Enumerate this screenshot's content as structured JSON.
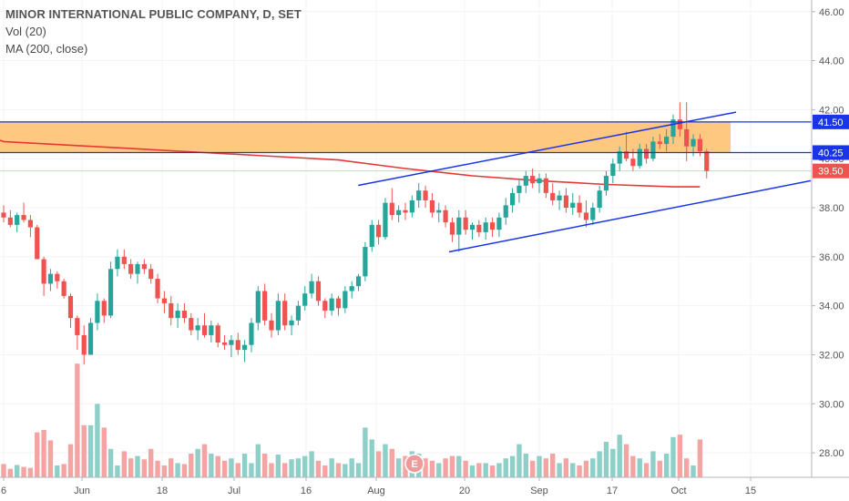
{
  "legend": {
    "title": "MINOR INTERNATIONAL PUBLIC COMPANY, D, SET",
    "vol": "Vol (20)",
    "ma": "MA (200, close)"
  },
  "colors": {
    "up": "#26a69a",
    "down": "#ef5350",
    "vol_up": "#8ecfc8",
    "vol_down": "#f4a4a2",
    "ma": "#e53935",
    "channel": "#1a35e8",
    "zone": "#ffbe6b",
    "hline": "#1a35e8",
    "price_tag": "#ef5350",
    "earnings": "#ef9a9a"
  },
  "chart_data": {
    "type": "candlestick",
    "ylim": [
      27,
      46.4
    ],
    "y_ticks": [
      "28.00",
      "30.00",
      "32.00",
      "34.00",
      "36.00",
      "38.00",
      "40.00",
      "42.00",
      "44.00",
      "46.00"
    ],
    "x_ticks": [
      "6",
      "Jun",
      "18",
      "Jul",
      "16",
      "Aug",
      "20",
      "Sep",
      "17",
      "Oct",
      "15"
    ],
    "price_tags": [
      "41.50",
      "40.25",
      "39.50"
    ],
    "earnings_marker": "E",
    "zone": [
      40.25,
      41.5
    ],
    "current_price": 39.5,
    "ohlc": [
      [
        37.8,
        38.1,
        37.4,
        37.6
      ],
      [
        37.6,
        37.9,
        37.2,
        37.3
      ],
      [
        37.3,
        37.8,
        37.0,
        37.7
      ],
      [
        37.7,
        38.2,
        37.4,
        37.5
      ],
      [
        37.5,
        37.7,
        36.8,
        37.2
      ],
      [
        37.2,
        37.3,
        35.9,
        35.9
      ],
      [
        35.9,
        36.0,
        34.4,
        34.9
      ],
      [
        34.9,
        35.5,
        34.6,
        35.3
      ],
      [
        35.3,
        35.4,
        34.7,
        35.0
      ],
      [
        35.0,
        35.1,
        34.3,
        34.4
      ],
      [
        34.4,
        34.5,
        33.1,
        33.5
      ],
      [
        33.5,
        33.6,
        32.2,
        32.8
      ],
      [
        32.8,
        33.2,
        31.6,
        32.0
      ],
      [
        32.0,
        33.5,
        32.0,
        33.3
      ],
      [
        33.3,
        34.5,
        33.0,
        34.2
      ],
      [
        34.2,
        34.3,
        33.3,
        33.6
      ],
      [
        33.6,
        35.8,
        33.5,
        35.5
      ],
      [
        35.5,
        36.3,
        35.2,
        36.0
      ],
      [
        36.0,
        36.3,
        35.5,
        35.7
      ],
      [
        35.7,
        35.9,
        35.1,
        35.3
      ],
      [
        35.3,
        35.8,
        34.9,
        35.7
      ],
      [
        35.7,
        35.9,
        35.3,
        35.5
      ],
      [
        35.5,
        35.7,
        34.9,
        35.1
      ],
      [
        35.1,
        35.3,
        34.1,
        34.3
      ],
      [
        34.3,
        34.6,
        33.7,
        34.1
      ],
      [
        34.1,
        34.4,
        33.2,
        33.5
      ],
      [
        33.5,
        34.1,
        33.1,
        33.8
      ],
      [
        33.8,
        34.1,
        33.3,
        33.5
      ],
      [
        33.5,
        33.7,
        32.8,
        33.0
      ],
      [
        33.0,
        33.5,
        32.6,
        33.2
      ],
      [
        33.2,
        33.7,
        32.7,
        32.8
      ],
      [
        32.8,
        33.4,
        32.5,
        33.2
      ],
      [
        33.2,
        33.3,
        32.3,
        32.5
      ],
      [
        32.5,
        32.8,
        32.2,
        32.4
      ],
      [
        32.4,
        32.8,
        31.9,
        32.6
      ],
      [
        32.6,
        32.9,
        32.0,
        32.2
      ],
      [
        32.2,
        32.6,
        31.7,
        32.4
      ],
      [
        32.4,
        33.5,
        32.1,
        33.3
      ],
      [
        33.3,
        34.8,
        33.0,
        34.6
      ],
      [
        34.6,
        34.9,
        33.2,
        33.4
      ],
      [
        33.4,
        33.7,
        32.7,
        33.0
      ],
      [
        33.0,
        34.5,
        32.8,
        34.2
      ],
      [
        34.2,
        34.5,
        33.0,
        33.2
      ],
      [
        33.2,
        33.6,
        32.8,
        33.4
      ],
      [
        33.4,
        34.2,
        33.2,
        34.0
      ],
      [
        34.0,
        34.8,
        33.8,
        34.5
      ],
      [
        34.5,
        35.3,
        34.3,
        35.0
      ],
      [
        35.0,
        35.2,
        34.0,
        34.2
      ],
      [
        34.2,
        34.3,
        33.5,
        33.8
      ],
      [
        33.8,
        34.5,
        33.6,
        34.3
      ],
      [
        34.3,
        34.4,
        33.6,
        33.9
      ],
      [
        33.9,
        34.8,
        33.7,
        34.6
      ],
      [
        34.6,
        35.0,
        34.3,
        34.8
      ],
      [
        34.8,
        35.3,
        34.6,
        35.2
      ],
      [
        35.2,
        36.6,
        35.0,
        36.4
      ],
      [
        36.4,
        37.5,
        36.2,
        37.3
      ],
      [
        37.3,
        37.5,
        36.5,
        36.8
      ],
      [
        36.8,
        38.4,
        36.7,
        38.2
      ],
      [
        38.2,
        38.8,
        37.5,
        37.7
      ],
      [
        37.7,
        38.1,
        37.4,
        37.9
      ],
      [
        37.9,
        38.2,
        37.5,
        37.8
      ],
      [
        37.8,
        38.5,
        37.6,
        38.3
      ],
      [
        38.3,
        39.0,
        38.0,
        38.7
      ],
      [
        38.7,
        38.9,
        38.0,
        38.3
      ],
      [
        38.3,
        38.6,
        37.6,
        37.8
      ],
      [
        37.8,
        38.2,
        37.4,
        37.9
      ],
      [
        37.9,
        38.1,
        37.2,
        37.4
      ],
      [
        37.4,
        37.6,
        36.6,
        36.9
      ],
      [
        36.9,
        37.9,
        36.2,
        37.6
      ],
      [
        37.6,
        37.9,
        36.9,
        37.1
      ],
      [
        37.1,
        37.4,
        36.7,
        37.3
      ],
      [
        37.3,
        37.5,
        36.8,
        37.0
      ],
      [
        37.0,
        37.6,
        36.7,
        37.4
      ],
      [
        37.4,
        37.6,
        36.8,
        37.1
      ],
      [
        37.1,
        37.8,
        36.8,
        37.6
      ],
      [
        37.6,
        38.4,
        37.3,
        38.1
      ],
      [
        38.1,
        38.8,
        37.8,
        38.6
      ],
      [
        38.6,
        39.2,
        38.2,
        38.9
      ],
      [
        38.9,
        39.5,
        38.6,
        39.3
      ],
      [
        39.3,
        39.6,
        38.8,
        39.0
      ],
      [
        39.0,
        39.4,
        38.6,
        39.2
      ],
      [
        39.2,
        39.4,
        38.4,
        38.6
      ],
      [
        38.6,
        39.0,
        38.1,
        38.3
      ],
      [
        38.3,
        38.7,
        37.9,
        38.5
      ],
      [
        38.5,
        38.8,
        37.8,
        38.0
      ],
      [
        38.0,
        38.6,
        37.7,
        38.2
      ],
      [
        38.2,
        38.5,
        37.6,
        37.8
      ],
      [
        37.8,
        38.3,
        37.2,
        37.5
      ],
      [
        37.5,
        38.2,
        37.3,
        38.0
      ],
      [
        38.0,
        38.9,
        37.8,
        38.7
      ],
      [
        38.7,
        39.5,
        38.5,
        39.3
      ],
      [
        39.3,
        40.0,
        39.0,
        39.8
      ],
      [
        39.8,
        40.5,
        39.5,
        40.3
      ],
      [
        40.3,
        41.1,
        39.9,
        40.0
      ],
      [
        40.0,
        40.4,
        39.5,
        39.7
      ],
      [
        39.7,
        40.6,
        39.6,
        40.4
      ],
      [
        40.4,
        40.6,
        39.8,
        40.0
      ],
      [
        40.0,
        40.9,
        39.9,
        40.7
      ],
      [
        40.7,
        41.0,
        40.4,
        40.6
      ],
      [
        40.6,
        41.2,
        40.3,
        40.9
      ],
      [
        40.9,
        41.8,
        40.6,
        41.6
      ],
      [
        41.6,
        42.3,
        40.9,
        41.2
      ],
      [
        41.2,
        42.3,
        39.9,
        40.5
      ],
      [
        40.5,
        41.0,
        40.1,
        40.8
      ],
      [
        40.8,
        41.0,
        40.1,
        40.3
      ],
      [
        40.3,
        40.4,
        39.2,
        39.5
      ]
    ],
    "volume": [
      [
        0.28,
        "down"
      ],
      [
        0.18,
        "down"
      ],
      [
        0.26,
        "up"
      ],
      [
        0.22,
        "down"
      ],
      [
        0.2,
        "down"
      ],
      [
        0.95,
        "down"
      ],
      [
        1.0,
        "down"
      ],
      [
        0.78,
        "down"
      ],
      [
        0.25,
        "up"
      ],
      [
        0.28,
        "down"
      ],
      [
        0.7,
        "down"
      ],
      [
        2.4,
        "down"
      ],
      [
        1.1,
        "down"
      ],
      [
        1.1,
        "up"
      ],
      [
        1.55,
        "up"
      ],
      [
        1.05,
        "down"
      ],
      [
        0.6,
        "up"
      ],
      [
        0.25,
        "up"
      ],
      [
        0.55,
        "down"
      ],
      [
        0.4,
        "down"
      ],
      [
        0.45,
        "up"
      ],
      [
        0.38,
        "down"
      ],
      [
        0.6,
        "down"
      ],
      [
        0.35,
        "down"
      ],
      [
        0.25,
        "down"
      ],
      [
        0.4,
        "down"
      ],
      [
        0.3,
        "up"
      ],
      [
        0.28,
        "down"
      ],
      [
        0.5,
        "down"
      ],
      [
        0.6,
        "up"
      ],
      [
        0.7,
        "down"
      ],
      [
        0.5,
        "up"
      ],
      [
        0.45,
        "down"
      ],
      [
        0.35,
        "down"
      ],
      [
        0.4,
        "up"
      ],
      [
        0.3,
        "down"
      ],
      [
        0.5,
        "up"
      ],
      [
        0.3,
        "up"
      ],
      [
        0.7,
        "up"
      ],
      [
        0.5,
        "down"
      ],
      [
        0.3,
        "down"
      ],
      [
        0.48,
        "up"
      ],
      [
        0.3,
        "down"
      ],
      [
        0.38,
        "up"
      ],
      [
        0.4,
        "up"
      ],
      [
        0.45,
        "up"
      ],
      [
        0.55,
        "up"
      ],
      [
        0.35,
        "down"
      ],
      [
        0.25,
        "down"
      ],
      [
        0.4,
        "up"
      ],
      [
        0.3,
        "down"
      ],
      [
        0.28,
        "up"
      ],
      [
        0.4,
        "up"
      ],
      [
        0.3,
        "up"
      ],
      [
        1.05,
        "up"
      ],
      [
        0.8,
        "up"
      ],
      [
        0.55,
        "down"
      ],
      [
        0.7,
        "up"
      ],
      [
        0.6,
        "down"
      ],
      [
        0.4,
        "up"
      ],
      [
        0.45,
        "down"
      ],
      [
        0.55,
        "up"
      ],
      [
        0.5,
        "up"
      ],
      [
        0.4,
        "down"
      ],
      [
        0.35,
        "down"
      ],
      [
        0.3,
        "up"
      ],
      [
        0.4,
        "down"
      ],
      [
        0.45,
        "down"
      ],
      [
        0.45,
        "up"
      ],
      [
        0.35,
        "down"
      ],
      [
        0.25,
        "up"
      ],
      [
        0.3,
        "down"
      ],
      [
        0.3,
        "up"
      ],
      [
        0.25,
        "down"
      ],
      [
        0.3,
        "up"
      ],
      [
        0.4,
        "up"
      ],
      [
        0.45,
        "up"
      ],
      [
        0.7,
        "up"
      ],
      [
        0.5,
        "up"
      ],
      [
        0.35,
        "down"
      ],
      [
        0.45,
        "up"
      ],
      [
        0.4,
        "down"
      ],
      [
        0.5,
        "down"
      ],
      [
        0.3,
        "up"
      ],
      [
        0.4,
        "down"
      ],
      [
        0.3,
        "up"
      ],
      [
        0.25,
        "down"
      ],
      [
        0.35,
        "down"
      ],
      [
        0.4,
        "up"
      ],
      [
        0.55,
        "up"
      ],
      [
        0.75,
        "up"
      ],
      [
        0.6,
        "up"
      ],
      [
        0.9,
        "up"
      ],
      [
        0.7,
        "down"
      ],
      [
        0.45,
        "down"
      ],
      [
        0.4,
        "up"
      ],
      [
        0.3,
        "down"
      ],
      [
        0.55,
        "up"
      ],
      [
        0.35,
        "down"
      ],
      [
        0.5,
        "up"
      ],
      [
        0.85,
        "up"
      ],
      [
        0.9,
        "down"
      ],
      [
        0.4,
        "down"
      ],
      [
        0.25,
        "up"
      ],
      [
        0.8,
        "down"
      ]
    ],
    "ma200": [
      [
        0,
        40.7
      ],
      [
        10,
        40.55
      ],
      [
        20,
        40.4
      ],
      [
        30,
        40.25
      ],
      [
        40,
        40.1
      ],
      [
        50,
        39.95
      ],
      [
        60,
        39.6
      ],
      [
        70,
        39.3
      ],
      [
        80,
        39.1
      ],
      [
        90,
        38.95
      ],
      [
        100,
        38.85
      ],
      [
        104,
        38.85
      ]
    ],
    "channel_upper": [
      [
        55,
        38.95
      ],
      [
        110,
        41.9
      ]
    ],
    "channel_lower": [
      [
        68,
        36.2
      ],
      [
        119,
        39.1
      ]
    ]
  }
}
